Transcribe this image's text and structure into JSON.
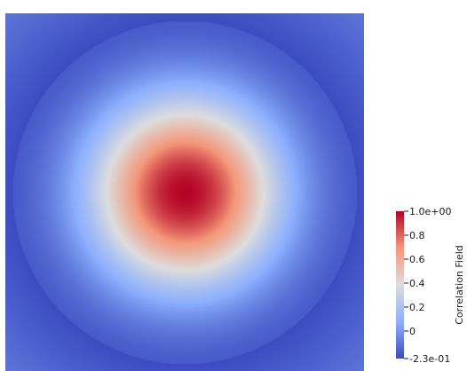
{
  "chart_data": {
    "type": "heatmap",
    "title": "",
    "xlabel": "",
    "ylabel": "",
    "field": {
      "shape": "radial",
      "center": [
        0.0,
        0.0
      ],
      "peak_value": 1.0,
      "min_value": -0.23,
      "edge_value": -0.1
    },
    "colorbar": {
      "title": "Correlation Field",
      "range": [
        -0.23,
        1.0
      ],
      "colormap": [
        "#3b4cc0",
        "#8db0fe",
        "#dddddd",
        "#f4987a",
        "#b40426"
      ],
      "ticks": [
        {
          "value": 1.0,
          "label": "1.0e+00"
        },
        {
          "value": 0.8,
          "label": "0.8"
        },
        {
          "value": 0.6,
          "label": "0.6"
        },
        {
          "value": 0.4,
          "label": "0.4"
        },
        {
          "value": 0.2,
          "label": "0.2"
        },
        {
          "value": 0.0,
          "label": "0"
        },
        {
          "value": -0.23,
          "label": "-2.3e-01"
        }
      ]
    }
  }
}
